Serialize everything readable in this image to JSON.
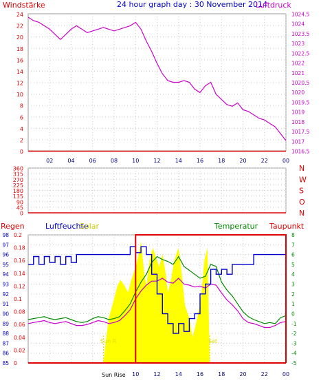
{
  "chart_data": [
    {
      "type": "line",
      "title": "24 hour graph day : 30 November 2014",
      "left_axis_label": "Windstärke",
      "right_axis_label": "Luftdruck",
      "x_ticks": [
        "02",
        "04",
        "06",
        "08",
        "10",
        "12",
        "14",
        "16",
        "18",
        "20",
        "22",
        "00"
      ],
      "left_ticks": [
        "0",
        "2",
        "4",
        "6",
        "8",
        "10",
        "12",
        "14",
        "16",
        "18",
        "20",
        "22",
        "24"
      ],
      "right_ticks": [
        "1016.5",
        "1017",
        "1017.5",
        "1018",
        "1019",
        "1019.5",
        "1020",
        "1020.5",
        "1021",
        "1022",
        "1022.5",
        "1023",
        "1023.5",
        "1024",
        "1024.5"
      ],
      "grid": true,
      "colors": {
        "left_axis": "#dd0000",
        "right_axis": "#cc00cc",
        "title": "#0000cc"
      },
      "series": [
        {
          "name": "Luftdruck",
          "color": "#cc00cc",
          "x": [
            0,
            0.5,
            1,
            1.5,
            2,
            2.5,
            3,
            3.5,
            4,
            4.5,
            5,
            5.5,
            6,
            6.5,
            7,
            7.5,
            8,
            8.5,
            9,
            9.5,
            10,
            10.5,
            11,
            11.5,
            12,
            12.5,
            13,
            13.5,
            14,
            14.5,
            15,
            15.5,
            16,
            16.5,
            17,
            17.5,
            18,
            18.5,
            19,
            19.5,
            20,
            20.5,
            21,
            21.5,
            22,
            22.5,
            23,
            23.5,
            24
          ],
          "values": [
            1024.3,
            1024.1,
            1024.0,
            1023.8,
            1023.6,
            1023.3,
            1023.0,
            1023.3,
            1023.6,
            1023.8,
            1023.6,
            1023.4,
            1023.5,
            1023.6,
            1023.7,
            1023.6,
            1023.5,
            1023.6,
            1023.7,
            1023.8,
            1024.0,
            1023.6,
            1022.9,
            1022.3,
            1021.6,
            1021.0,
            1020.6,
            1020.5,
            1020.5,
            1020.6,
            1020.5,
            1020.1,
            1019.9,
            1020.3,
            1020.5,
            1019.8,
            1019.5,
            1019.2,
            1019.1,
            1019.3,
            1018.9,
            1018.8,
            1018.6,
            1018.4,
            1018.3,
            1018.1,
            1017.9,
            1017.5,
            1017.1
          ]
        }
      ]
    },
    {
      "type": "line",
      "x_ticks": [
        "02",
        "04",
        "06",
        "08",
        "10",
        "12",
        "14",
        "16",
        "18",
        "20",
        "22",
        "00"
      ],
      "left_ticks": [
        "0",
        "45",
        "90",
        "135",
        "180",
        "225",
        "270",
        "315",
        "360"
      ],
      "right_ticks": [
        "N",
        "W",
        "S",
        "O",
        "N"
      ],
      "grid": true,
      "colors": {
        "left_axis": "#dd0000",
        "right_axis": "#dd0000"
      },
      "series": [
        {
          "name": "Windrichtung",
          "color": "#dd0000",
          "x": [
            0,
            24
          ],
          "values": [
            0,
            0
          ]
        }
      ]
    },
    {
      "type": "line",
      "labels": {
        "regen": "Regen",
        "luftfeuchte": "Luftfeuchte",
        "solar": "Solar",
        "temperatur": "Temperatur",
        "taupunkt": "Taupunkt"
      },
      "annotations": {
        "sun_rise": "Sun R",
        "sun_set": "Set",
        "sun_lower": "Sun Rise"
      },
      "x_ticks": [
        "10",
        "12",
        "14",
        "16",
        "18",
        "20",
        "22",
        "00"
      ],
      "regen_ticks": [
        "0",
        "0.02",
        "0.04",
        "0.06",
        "0.08",
        "0.1",
        "0.12",
        "0.14",
        "0.16",
        "0.18",
        "0.2"
      ],
      "humidity_ticks": [
        "85",
        "86",
        "87",
        "88",
        "89",
        "90",
        "91",
        "92",
        "93",
        "94",
        "95",
        "96",
        "97",
        "98"
      ],
      "temp_ticks": [
        "-5",
        "-4",
        "-3",
        "-2",
        "-1",
        "0",
        "1",
        "2",
        "3",
        "4",
        "5",
        "6",
        "7",
        "8"
      ],
      "grid": true,
      "colors": {
        "regen": "#dd0000",
        "luftfeuchte": "#0000cc",
        "solar": "#dddd00",
        "temperatur": "#008800",
        "taupunkt": "#cc00cc",
        "solar_fill": "#ffff00"
      },
      "series": [
        {
          "name": "Solar",
          "x": [
            0,
            7,
            7.2,
            7.5,
            8,
            8.3,
            8.6,
            9,
            9.3,
            9.6,
            10,
            10.3,
            10.5,
            10.8,
            11,
            11.3,
            11.6,
            12,
            12.2,
            12.5,
            12.8,
            13,
            13.3,
            13.6,
            14,
            14.3,
            14.6,
            15,
            15.3,
            15.6,
            16,
            16.2,
            16.4,
            16.7,
            16.9,
            24
          ],
          "values": [
            0,
            0,
            0.03,
            0.07,
            0.1,
            0.12,
            0.13,
            0.12,
            0.11,
            0.13,
            0.15,
            0.17,
            0.19,
            0.14,
            0.12,
            0.16,
            0.18,
            0.16,
            0.15,
            0.17,
            0.14,
            0.11,
            0.13,
            0.16,
            0.18,
            0.14,
            0.09,
            0.07,
            0.04,
            0.06,
            0.09,
            0.12,
            0.16,
            0.18,
            0,
            0
          ]
        },
        {
          "name": "Regen",
          "x": [
            0,
            24
          ],
          "values": [
            0,
            0
          ]
        },
        {
          "name": "Luftfeuchte",
          "x": [
            0,
            0.5,
            1,
            1.5,
            2,
            2.5,
            3,
            3.5,
            4,
            4.5,
            5,
            5.5,
            6,
            6.5,
            7,
            7.5,
            8,
            8.5,
            9,
            9.5,
            10,
            10.5,
            11,
            11.5,
            12,
            12.5,
            13,
            13.5,
            14,
            14.5,
            15,
            15.5,
            16,
            16.5,
            17,
            17.5,
            18,
            18.5,
            19,
            19.5,
            20,
            20.5,
            21,
            21.5,
            22,
            22.5,
            23,
            23.5,
            24
          ],
          "values": [
            95,
            95.8,
            95,
            95.8,
            95.2,
            95.8,
            95,
            95.8,
            95.2,
            96,
            96,
            96,
            96,
            96,
            96,
            96,
            96,
            96,
            96,
            96.8,
            96.2,
            96.8,
            96,
            94,
            92,
            90,
            89,
            88,
            89,
            88.2,
            89.5,
            90,
            92,
            93,
            94.5,
            94,
            94.5,
            94,
            95,
            95,
            95,
            95,
            96,
            96,
            96,
            96,
            96,
            96,
            96
          ]
        },
        {
          "name": "Temperatur",
          "x": [
            0,
            0.5,
            1,
            1.5,
            2,
            2.5,
            3,
            3.5,
            4,
            4.5,
            5,
            5.5,
            6,
            6.5,
            7,
            7.5,
            8,
            8.5,
            9,
            9.5,
            10,
            10.5,
            11,
            11.5,
            12,
            12.5,
            13,
            13.5,
            14,
            14.5,
            15,
            15.5,
            16,
            16.5,
            17,
            17.5,
            18,
            18.5,
            19,
            19.5,
            20,
            20.5,
            21,
            21.5,
            22,
            22.5,
            23,
            23.5,
            24
          ],
          "values": [
            -0.6,
            -0.5,
            -0.4,
            -0.3,
            -0.5,
            -0.6,
            -0.5,
            -0.4,
            -0.6,
            -0.8,
            -0.9,
            -0.8,
            -0.5,
            -0.3,
            -0.4,
            -0.6,
            -0.5,
            -0.3,
            0.3,
            1.0,
            2.2,
            3.2,
            4.0,
            5.2,
            5.8,
            5.5,
            5.3,
            5.0,
            5.8,
            4.8,
            4.4,
            4.0,
            3.6,
            3.8,
            5.0,
            4.8,
            3.2,
            2.4,
            1.8,
            1.0,
            0.2,
            -0.3,
            -0.6,
            -0.8,
            -1.0,
            -0.9,
            -1.0,
            -0.4,
            -0.2
          ]
        },
        {
          "name": "Taupunkt",
          "x": [
            0,
            0.5,
            1,
            1.5,
            2,
            2.5,
            3,
            3.5,
            4,
            4.5,
            5,
            5.5,
            6,
            6.5,
            7,
            7.5,
            8,
            8.5,
            9,
            9.5,
            10,
            10.5,
            11,
            11.5,
            12,
            12.5,
            13,
            13.5,
            14,
            14.5,
            15,
            15.5,
            16,
            16.5,
            17,
            17.5,
            18,
            18.5,
            19,
            19.5,
            20,
            20.5,
            21,
            21.5,
            22,
            22.5,
            23,
            23.5,
            24
          ],
          "values": [
            -1.0,
            -0.9,
            -0.8,
            -0.7,
            -0.9,
            -1.0,
            -0.9,
            -0.8,
            -1.0,
            -1.2,
            -1.2,
            -1.1,
            -0.9,
            -0.7,
            -0.8,
            -1.0,
            -0.9,
            -0.7,
            -0.2,
            0.4,
            1.5,
            2.3,
            2.9,
            3.3,
            3.3,
            3.6,
            3.2,
            3.1,
            3.6,
            3.0,
            2.9,
            2.7,
            2.8,
            2.6,
            3.0,
            2.9,
            2.1,
            1.4,
            0.9,
            0.3,
            -0.5,
            -0.9,
            -1.0,
            -1.2,
            -1.4,
            -1.4,
            -1.2,
            -0.9,
            -0.8
          ]
        },
        {
          "name": "Regen-Rahmen",
          "x": [
            0,
            10,
            10,
            24,
            24
          ],
          "values": [
            0,
            0,
            0.2,
            0.2,
            0
          ]
        }
      ]
    }
  ]
}
